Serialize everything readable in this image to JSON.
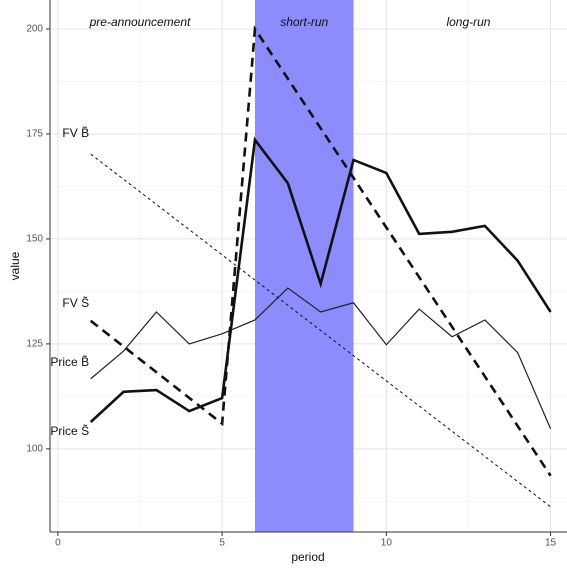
{
  "chart_data": {
    "type": "line",
    "xlabel": "period",
    "ylabel": "value",
    "xlim": [
      -0.24,
      15.5
    ],
    "ylim": [
      80.2,
      206.9
    ],
    "xticks": [
      0,
      5,
      10,
      15
    ],
    "yticks": [
      100,
      125,
      150,
      175,
      200
    ],
    "x_minor_ticks": [
      2.5,
      7.5,
      12.5
    ],
    "y_minor_ticks": [
      87.5,
      112.5,
      137.5,
      162.5,
      187.5
    ],
    "grid": true,
    "shaded_region": {
      "xmin": 6,
      "xmax": 9,
      "color": "#8c8cff"
    },
    "series": [
      {
        "color": "#111111",
        "linetype": "solid",
        "linewidth": 2.6,
        "x": [
          1,
          2,
          3,
          4,
          5,
          6,
          7,
          8,
          9,
          10,
          11,
          12,
          13,
          14,
          15
        ],
        "values": [
          106.4,
          113.6,
          114,
          109,
          112.1,
          173.6,
          163.3,
          139.3,
          168.8,
          165.7,
          151.2,
          151.7,
          153.1,
          144.8,
          132.6
        ]
      },
      {
        "color": "#222222",
        "linetype": "solid",
        "linewidth": 1.2,
        "x": [
          1,
          2,
          3,
          4,
          5,
          6,
          7,
          8,
          9,
          10,
          11,
          12,
          13,
          14,
          15
        ],
        "values": [
          116.7,
          123.3,
          132.6,
          125,
          127.4,
          130.7,
          138.3,
          132.6,
          134.8,
          124.8,
          133.3,
          126.7,
          130.7,
          122.9,
          104.8
        ]
      },
      {
        "color": "#111111",
        "linetype": "dashed",
        "linewidth": 2.6,
        "x": [
          1,
          5,
          6,
          15
        ],
        "values": [
          130.5,
          106,
          200,
          93.6
        ]
      },
      {
        "color": "#111111",
        "linetype": "dotted",
        "linewidth": 1,
        "x": [
          1,
          15
        ],
        "values": [
          170.2,
          86.2
        ]
      }
    ],
    "annotations": [
      {
        "text": "pre-announcement",
        "x": 2.5,
        "y": 201.5,
        "italic": true
      },
      {
        "text": "short-run",
        "x": 7.5,
        "y": 201.5,
        "italic": true
      },
      {
        "text": "long-run",
        "x": 12.5,
        "y": 201.5,
        "italic": true
      },
      {
        "text": "FV B̃",
        "x": 0.95,
        "y": 175,
        "italic": false
      },
      {
        "text": "FV S̃",
        "x": 0.95,
        "y": 134.5,
        "italic": false
      },
      {
        "text": "Price B̃",
        "x": 0.95,
        "y": 120.5,
        "italic": false
      },
      {
        "text": "Price S̃",
        "x": 0.95,
        "y": 104,
        "italic": false
      }
    ]
  }
}
